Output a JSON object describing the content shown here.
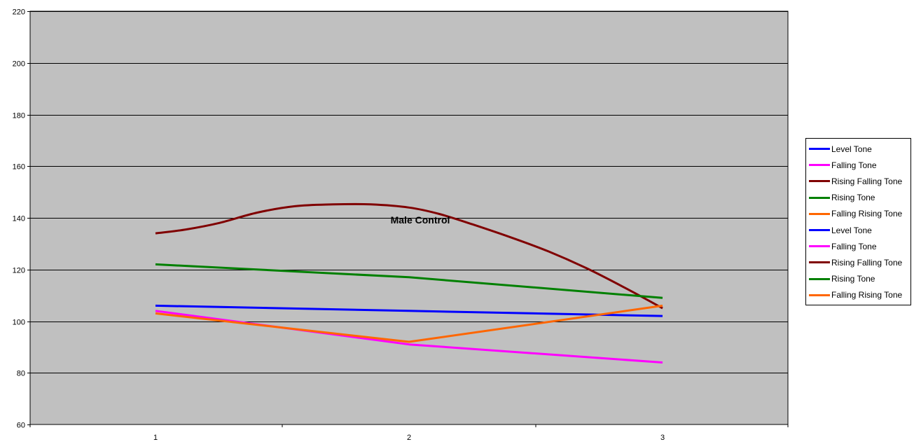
{
  "chart_data": {
    "type": "line",
    "title": "",
    "annotation": "Male Control",
    "xlabel": "",
    "ylabel": "",
    "x": [
      1,
      2,
      3
    ],
    "x_tick_labels": [
      "1",
      "2",
      "3"
    ],
    "ylim": [
      60,
      220
    ],
    "y_ticks": [
      60,
      80,
      100,
      120,
      140,
      160,
      180,
      200,
      220
    ],
    "grid": true,
    "plot_background": "#C0C0C0",
    "legend_position": "right",
    "series": [
      {
        "name": "Level Tone",
        "color": "#0000FF",
        "smooth": false,
        "points": [
          [
            1,
            106
          ],
          [
            2,
            104
          ],
          [
            3,
            102
          ]
        ]
      },
      {
        "name": "Falling Tone",
        "color": "#FF00FF",
        "smooth": false,
        "points": [
          [
            1,
            104
          ],
          [
            2,
            91
          ],
          [
            3,
            84
          ]
        ]
      },
      {
        "name": "Rising Falling Tone",
        "color": "#800000",
        "smooth": true,
        "points": [
          [
            1,
            134
          ],
          [
            1.12,
            135.5
          ],
          [
            1.25,
            138
          ],
          [
            1.4,
            142
          ],
          [
            1.55,
            144.5
          ],
          [
            1.7,
            145.2
          ],
          [
            1.85,
            145.2
          ],
          [
            2,
            144
          ],
          [
            2.12,
            141.5
          ],
          [
            2.25,
            137.5
          ],
          [
            2.4,
            132.5
          ],
          [
            2.55,
            127
          ],
          [
            2.7,
            120.5
          ],
          [
            2.85,
            113
          ],
          [
            3,
            105
          ]
        ]
      },
      {
        "name": "Rising Tone",
        "color": "#008000",
        "smooth": false,
        "points": [
          [
            1,
            122
          ],
          [
            2,
            117
          ],
          [
            3,
            109
          ]
        ]
      },
      {
        "name": "Falling Rising Tone",
        "color": "#FF6600",
        "smooth": false,
        "points": [
          [
            1,
            103
          ],
          [
            2,
            92
          ],
          [
            3,
            106
          ]
        ]
      }
    ],
    "legend_entries": [
      {
        "label": "Level Tone",
        "color": "#0000FF"
      },
      {
        "label": "Falling Tone",
        "color": "#FF00FF"
      },
      {
        "label": "Rising Falling Tone",
        "color": "#800000"
      },
      {
        "label": "Rising Tone",
        "color": "#008000"
      },
      {
        "label": "Falling Rising Tone",
        "color": "#FF6600"
      },
      {
        "label": "Level Tone",
        "color": "#0000FF"
      },
      {
        "label": "Falling Tone",
        "color": "#FF00FF"
      },
      {
        "label": "Rising Falling Tone",
        "color": "#800000"
      },
      {
        "label": "Rising Tone",
        "color": "#008000"
      },
      {
        "label": "Falling Rising Tone",
        "color": "#FF6600"
      }
    ]
  }
}
